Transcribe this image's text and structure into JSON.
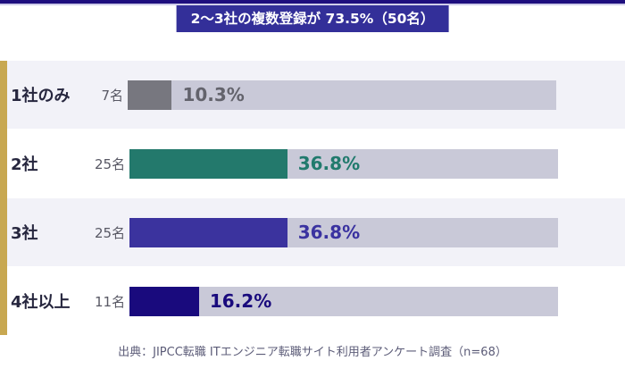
{
  "header": {
    "top_border_color": "#1e0e7e",
    "top_border_light_color": "#cfcde9",
    "badge": {
      "text": "2〜3社の複数登録が 73.5%（50名）",
      "bg_color": "#332f99",
      "text_color": "#ffffff"
    }
  },
  "chart_data": {
    "type": "bar",
    "orientation": "horizontal",
    "title": "2〜3社の複数登録が 73.5%（50名）",
    "categories": [
      "1社のみ",
      "2社",
      "3社",
      "4社以上"
    ],
    "counts": [
      "7名",
      "25名",
      "25名",
      "11名"
    ],
    "values": [
      10.3,
      36.8,
      36.8,
      16.2
    ],
    "value_labels": [
      "10.3%",
      "36.8%",
      "36.8%",
      "16.2%"
    ],
    "bar_colors": [
      "#77777f",
      "#23796c",
      "#3b339e",
      "#190a7d"
    ],
    "value_label_colors": [
      "#63636c",
      "#217a6d",
      "#3a32a0",
      "#190a7d"
    ],
    "track_color": "#c9c9d8",
    "row_bg_alt": "#f2f2f8",
    "row_bg": "#ffffff",
    "accent_stripe_color": "#c8a851",
    "xlim": [
      0,
      100
    ],
    "grid": false,
    "legend": false
  },
  "footer": {
    "source": "出典：JIPCC転職 ITエンジニア転職サイト利用者アンケート調査（n=68）"
  }
}
